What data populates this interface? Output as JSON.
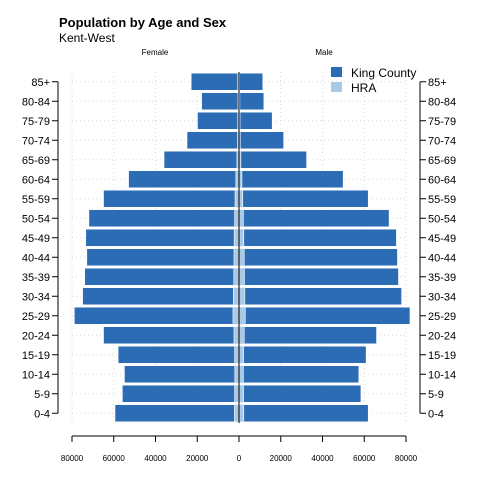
{
  "chart_data": {
    "type": "bar",
    "orientation": "horizontal",
    "style": "population-pyramid",
    "title": "Population by Age and Sex",
    "subtitle": "Kent-West",
    "side_labels": {
      "left": "Female",
      "right": "Male"
    },
    "categories": [
      "0-4",
      "5-9",
      "10-14",
      "15-19",
      "20-24",
      "25-29",
      "30-34",
      "35-39",
      "40-44",
      "45-49",
      "50-54",
      "55-59",
      "60-64",
      "65-69",
      "70-74",
      "75-79",
      "80-84",
      "85+"
    ],
    "x_ticks": [
      -80000,
      -60000,
      -40000,
      -20000,
      0,
      20000,
      40000,
      60000,
      80000
    ],
    "x_tick_labels": [
      "80000",
      "60000",
      "40000",
      "20000",
      "0",
      "20000",
      "40000",
      "60000",
      "80000"
    ],
    "xlim": [
      -80000,
      80000
    ],
    "grid": true,
    "legend_position": "top-right",
    "series": [
      {
        "name": "King County",
        "color": "#2b6cb5",
        "female": [
          59500,
          56000,
          55000,
          58000,
          65000,
          79000,
          75000,
          74000,
          73000,
          73500,
          72000,
          65000,
          53000,
          36000,
          25000,
          20000,
          18000,
          23000
        ],
        "male": [
          62000,
          58500,
          57500,
          61000,
          66000,
          82000,
          78000,
          76500,
          76000,
          75500,
          72000,
          62000,
          50000,
          32500,
          21500,
          16000,
          12000,
          11500
        ]
      },
      {
        "name": "HRA",
        "color": "#a9c9e4",
        "female": [
          2200,
          2100,
          2000,
          2100,
          2400,
          2900,
          2700,
          2500,
          2400,
          2300,
          2100,
          1900,
          1500,
          1000,
          700,
          600,
          500,
          600
        ],
        "male": [
          2300,
          2200,
          2100,
          2200,
          2500,
          3000,
          2800,
          2600,
          2500,
          2300,
          2100,
          1800,
          1400,
          900,
          600,
          500,
          400,
          300
        ]
      }
    ]
  }
}
